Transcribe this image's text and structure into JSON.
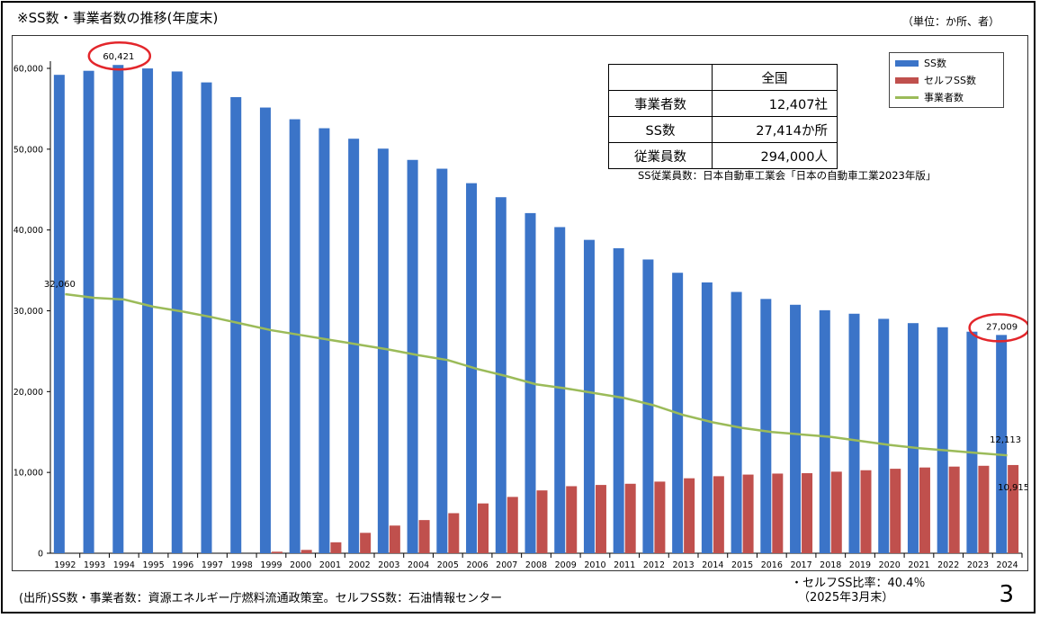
{
  "header": {
    "title": "※SS数・事業者数の推移(年度末)",
    "unit": "（単位：か所、者）"
  },
  "stats_table": {
    "column_header": "全国",
    "rows": [
      {
        "label": "事業者数",
        "value": "12,407社"
      },
      {
        "label": "SS数",
        "value": "27,414か所"
      },
      {
        "label": "従業員数",
        "value": "294,000人"
      }
    ],
    "note": "SS従業員数：日本自動車工業会「日本の自動車工業2023年版」"
  },
  "footer": {
    "source": "(出所)SS数・事業者数：資源エネルギー庁燃料流通政策室。セルフSS数：石油情報センター",
    "self_ratio_line1": "・セルフSS比率：40.4％",
    "self_ratio_line2": "（2025年3月末）",
    "page_number": "3"
  },
  "colors": {
    "ss": "#3b74c8",
    "self_ss": "#c0504d",
    "operators": "#9bbb59",
    "highlight": "#e3262b"
  },
  "chart_data": {
    "type": "bar",
    "categories": [
      "1992",
      "1993",
      "1994",
      "1995",
      "1996",
      "1997",
      "1998",
      "1999",
      "2000",
      "2001",
      "2002",
      "2003",
      "2004",
      "2005",
      "2006",
      "2007",
      "2008",
      "2009",
      "2010",
      "2011",
      "2012",
      "2013",
      "2014",
      "2015",
      "2016",
      "2017",
      "2018",
      "2019",
      "2020",
      "2021",
      "2022",
      "2023",
      "2024"
    ],
    "ylim": [
      0,
      60000
    ],
    "yticks": [
      0,
      10000,
      20000,
      30000,
      40000,
      50000,
      60000
    ],
    "ytick_labels": [
      "0",
      "10,000",
      "20,000",
      "30,000",
      "40,000",
      "50,000",
      "60,000"
    ],
    "legend_position": "top-right",
    "series": [
      {
        "name": "SS数",
        "type": "bar",
        "color": "#3b74c8",
        "values": [
          59200,
          59700,
          60421,
          59990,
          59615,
          58263,
          56444,
          55153,
          53704,
          52592,
          51294,
          50067,
          48672,
          47584,
          45792,
          44057,
          42090,
          40357,
          38777,
          37743,
          36349,
          34706,
          33510,
          32333,
          31467,
          30747,
          30070,
          29637,
          29005,
          28475,
          27963,
          27414,
          27009
        ]
      },
      {
        "name": "セルフSS数",
        "type": "bar",
        "color": "#c0504d",
        "values": [
          0,
          0,
          0,
          0,
          0,
          0,
          0,
          191,
          412,
          1353,
          2523,
          3423,
          4104,
          4956,
          6162,
          6969,
          7774,
          8296,
          8449,
          8596,
          8862,
          9275,
          9530,
          9732,
          9856,
          9905,
          10091,
          10270,
          10453,
          10611,
          10722,
          10821,
          10915
        ]
      },
      {
        "name": "事業者数",
        "type": "line",
        "color": "#9bbb59",
        "values": [
          32060,
          31600,
          31400,
          30500,
          29900,
          29200,
          28400,
          27600,
          27000,
          26400,
          25800,
          25200,
          24500,
          23900,
          22800,
          21900,
          20900,
          20400,
          19800,
          19200,
          18300,
          17100,
          16200,
          15500,
          15000,
          14700,
          14400,
          13900,
          13400,
          13000,
          12700,
          12400,
          12113
        ]
      }
    ],
    "data_labels": [
      {
        "series": "SS数",
        "category": "1994",
        "text": "60,421"
      },
      {
        "series": "SS数",
        "category": "2024",
        "text": "27,009"
      },
      {
        "series": "事業者数",
        "category": "1992",
        "text": "32,060"
      },
      {
        "series": "事業者数",
        "category": "2024",
        "text": "12,113"
      },
      {
        "series": "セルフSS数",
        "category": "2024",
        "text": "10,915"
      }
    ]
  }
}
